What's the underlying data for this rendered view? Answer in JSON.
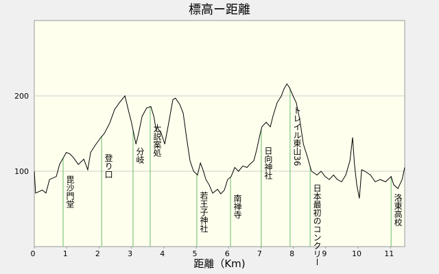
{
  "chart_data": {
    "type": "line",
    "title": "標高ー距離",
    "xlabel": "距離（Km)",
    "x": [
      0,
      0.04,
      0.25,
      0.36,
      0.47,
      0.68,
      0.78,
      0.99,
      1.1,
      1.21,
      1.36,
      1.53,
      1.65,
      1.74,
      1.89,
      2.06,
      2.16,
      2.33,
      2.48,
      2.63,
      2.8,
      2.9,
      3.0,
      3.14,
      3.22,
      3.33,
      3.47,
      3.6,
      3.69,
      3.77,
      3.9,
      4.03,
      4.15,
      4.28,
      4.36,
      4.49,
      4.6,
      4.7,
      4.81,
      4.92,
      5.04,
      5.13,
      5.21,
      5.3,
      5.4,
      5.51,
      5.66,
      5.76,
      5.87,
      5.97,
      6.08,
      6.19,
      6.31,
      6.44,
      6.57,
      6.65,
      6.78,
      6.86,
      6.95,
      7.03,
      7.16,
      7.29,
      7.37,
      7.5,
      7.63,
      7.71,
      7.8,
      7.88,
      7.99,
      8.09,
      8.2,
      8.31,
      8.43,
      8.56,
      8.73,
      8.86,
      8.98,
      9.11,
      9.24,
      9.36,
      9.49,
      9.62,
      9.75,
      9.83,
      9.89,
      9.96,
      10.04,
      10.11,
      10.21,
      10.38,
      10.53,
      10.68,
      10.85,
      11.02,
      11.1,
      11.23,
      11.36,
      11.44
    ],
    "values": [
      100,
      71,
      75,
      71,
      89,
      93,
      109,
      125,
      123,
      118,
      109,
      116,
      102,
      125,
      135,
      145,
      150,
      164,
      182,
      191,
      200,
      182,
      165,
      136,
      150,
      173,
      184,
      186,
      173,
      153,
      153,
      136,
      164,
      195,
      197,
      189,
      177,
      145,
      114,
      100,
      95,
      111,
      102,
      89,
      82,
      71,
      76,
      70,
      75,
      89,
      93,
      105,
      100,
      107,
      105,
      109,
      114,
      127,
      145,
      159,
      165,
      159,
      173,
      191,
      200,
      209,
      216,
      211,
      200,
      191,
      168,
      136,
      120,
      100,
      95,
      100,
      93,
      89,
      95,
      89,
      86,
      95,
      114,
      145,
      109,
      82,
      64,
      102,
      100,
      95,
      86,
      89,
      86,
      93,
      82,
      77,
      89,
      105
    ],
    "color": "#000000",
    "xlim": [
      0,
      11.44
    ],
    "xticks": [
      0,
      1,
      2,
      3,
      4,
      5,
      6,
      7,
      8,
      9,
      10,
      11
    ],
    "ylim": [
      0,
      300
    ],
    "yticks": [
      100,
      200
    ],
    "grid": "y",
    "marker_color": "#66bb66",
    "markers": [
      {
        "label": "毘沙門堂",
        "x": 0.89
      },
      {
        "label": "登り口",
        "x": 2.08
      },
      {
        "label": "分岐",
        "x": 3.05
      },
      {
        "label": "大説案処",
        "x": 3.58
      },
      {
        "label": "若王子神社",
        "x": 5.02
      },
      {
        "label": "南禅寺",
        "x": 6.06
      },
      {
        "label": "日向神社",
        "x": 7.01
      },
      {
        "label": "トレイル東山36",
        "x": 7.9
      },
      {
        "label": "日本最初のコンクリー",
        "x": 8.52
      },
      {
        "label": "洛東高校",
        "x": 11.02
      }
    ]
  }
}
